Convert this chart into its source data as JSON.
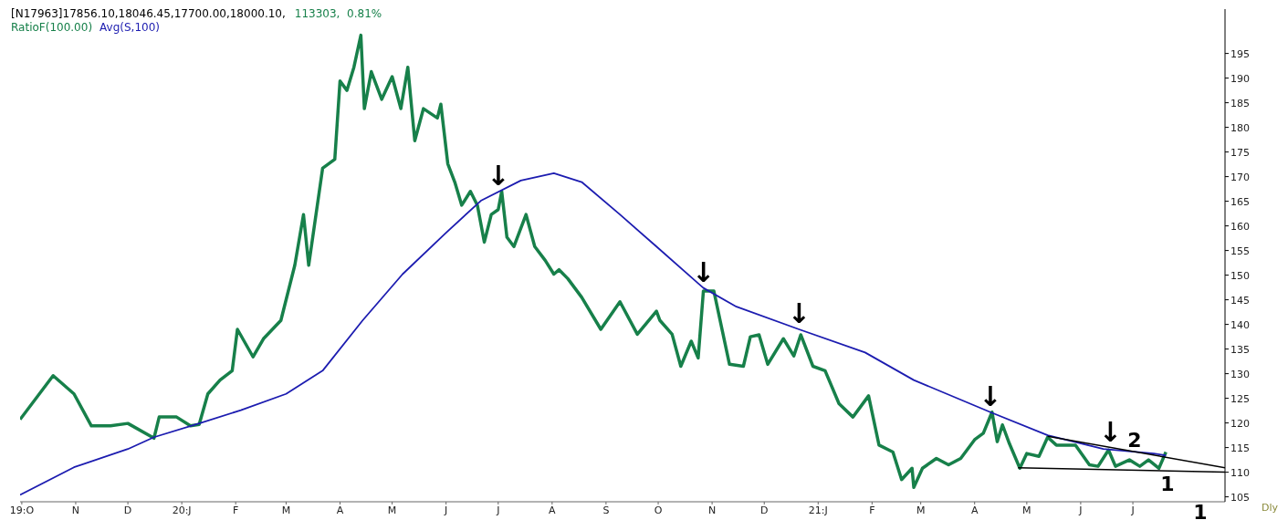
{
  "chart_data": {
    "type": "line",
    "title": "[N17963]17856.10,18046.45,17700.00,18000.10,",
    "subtitle": "113303,  0.81%",
    "xlim": [
      "2019-09-30",
      "2021-08-23"
    ],
    "ylim": [
      104,
      204
    ],
    "xticks": [
      {
        "value": "2019-10-01",
        "label": "19:O"
      },
      {
        "value": "2019-11-01",
        "label": "N"
      },
      {
        "value": "2019-12-01",
        "label": "D"
      },
      {
        "value": "2020-01-01",
        "label": "20:J"
      },
      {
        "value": "2020-02-01",
        "label": "F"
      },
      {
        "value": "2020-03-01",
        "label": "M"
      },
      {
        "value": "2020-04-01",
        "label": "A"
      },
      {
        "value": "2020-05-01",
        "label": "M"
      },
      {
        "value": "2020-06-01",
        "label": "J"
      },
      {
        "value": "2020-07-01",
        "label": "J"
      },
      {
        "value": "2020-08-01",
        "label": "A"
      },
      {
        "value": "2020-09-01",
        "label": "S"
      },
      {
        "value": "2020-10-01",
        "label": "O"
      },
      {
        "value": "2020-11-01",
        "label": "N"
      },
      {
        "value": "2020-12-01",
        "label": "D"
      },
      {
        "value": "2021-01-01",
        "label": "21:J"
      },
      {
        "value": "2021-02-01",
        "label": "F"
      },
      {
        "value": "2021-03-01",
        "label": "M"
      },
      {
        "value": "2021-04-01",
        "label": "A"
      },
      {
        "value": "2021-05-01",
        "label": "M"
      },
      {
        "value": "2021-06-01",
        "label": "J"
      },
      {
        "value": "2021-07-01",
        "label": "J"
      }
    ],
    "yticks": [
      105,
      110,
      115,
      120,
      125,
      130,
      135,
      140,
      145,
      150,
      155,
      160,
      165,
      170,
      175,
      180,
      185,
      190,
      195
    ],
    "legend": "top left",
    "marker": "none",
    "line_style": "solid",
    "series": [
      {
        "name": "RatioF(100.00)",
        "color": "#17804a",
        "x": [
          "2019-09-30",
          "2019-10-19",
          "2019-10-31",
          "2019-11-10",
          "2019-11-21",
          "2019-12-01",
          "2019-12-16",
          "2019-12-19",
          "2019-12-29",
          "2020-01-06",
          "2020-01-11",
          "2020-01-16",
          "2020-01-23",
          "2020-01-30",
          "2020-02-02",
          "2020-02-11",
          "2020-02-17",
          "2020-02-27",
          "2020-03-06",
          "2020-03-11",
          "2020-03-14",
          "2020-03-22",
          "2020-03-29",
          "2020-04-01",
          "2020-04-05",
          "2020-04-09",
          "2020-04-13",
          "2020-04-15",
          "2020-04-19",
          "2020-04-25",
          "2020-05-01",
          "2020-05-06",
          "2020-05-10",
          "2020-05-14",
          "2020-05-19",
          "2020-05-27",
          "2020-05-29",
          "2020-06-02",
          "2020-06-06",
          "2020-06-10",
          "2020-06-15",
          "2020-06-19",
          "2020-06-23",
          "2020-06-27",
          "2020-07-01",
          "2020-07-03",
          "2020-07-06",
          "2020-07-10",
          "2020-07-17",
          "2020-07-22",
          "2020-07-28",
          "2020-08-02",
          "2020-08-05",
          "2020-08-10",
          "2020-08-18",
          "2020-08-29",
          "2020-09-09",
          "2020-09-19",
          "2020-09-30",
          "2020-10-02",
          "2020-10-09",
          "2020-10-14",
          "2020-10-20",
          "2020-10-24",
          "2020-10-27",
          "2020-11-02",
          "2020-11-11",
          "2020-11-19",
          "2020-11-23",
          "2020-11-28",
          "2020-12-03",
          "2020-12-12",
          "2020-12-18",
          "2020-12-22",
          "2020-12-29",
          "2021-01-05",
          "2021-01-13",
          "2021-01-21",
          "2021-01-30",
          "2021-02-05",
          "2021-02-13",
          "2021-02-18",
          "2021-02-24",
          "2021-02-25",
          "2021-03-02",
          "2021-03-10",
          "2021-03-17",
          "2021-03-24",
          "2021-04-01",
          "2021-04-06",
          "2021-04-11",
          "2021-04-14",
          "2021-04-17",
          "2021-04-21",
          "2021-04-27",
          "2021-05-01",
          "2021-05-08",
          "2021-05-13",
          "2021-05-18",
          "2021-05-29",
          "2021-06-06",
          "2021-06-11",
          "2021-06-17",
          "2021-06-21",
          "2021-06-29",
          "2021-07-05",
          "2021-07-10",
          "2021-07-16",
          "2021-07-20"
        ],
        "values": [
          120.7,
          129.6,
          125.9,
          119.4,
          119.4,
          119.9,
          116.9,
          121.2,
          121.2,
          119.4,
          119.7,
          125.9,
          128.7,
          130.6,
          139.0,
          133.4,
          137.1,
          140.8,
          152.0,
          162.3,
          152.0,
          171.7,
          173.5,
          189.4,
          187.5,
          192.2,
          198.7,
          183.8,
          191.3,
          185.7,
          190.3,
          183.8,
          192.2,
          177.3,
          183.8,
          181.9,
          184.7,
          172.6,
          168.9,
          164.2,
          167.0,
          164.2,
          156.7,
          162.3,
          163.3,
          167.0,
          157.7,
          155.8,
          162.3,
          155.8,
          153.0,
          150.2,
          151.1,
          149.3,
          145.5,
          139.0,
          144.6,
          138.0,
          142.7,
          140.8,
          138.0,
          131.5,
          136.6,
          133.2,
          146.8,
          146.8,
          131.9,
          131.5,
          137.5,
          137.9,
          131.9,
          137.1,
          133.6,
          137.9,
          131.5,
          130.6,
          123.9,
          121.2,
          125.5,
          115.5,
          114.1,
          108.5,
          110.8,
          106.9,
          110.8,
          112.8,
          111.5,
          112.8,
          116.6,
          117.9,
          122.2,
          116.2,
          119.6,
          115.8,
          110.8,
          113.8,
          113.2,
          117.1,
          115.5,
          115.5,
          111.5,
          111.2,
          114.5,
          111.2,
          112.5,
          111.2,
          112.5,
          110.8,
          114.1
        ]
      },
      {
        "name": "Avg(S,100)",
        "color": "#1c1cb0",
        "x": [
          "2019-09-30",
          "2019-10-31",
          "2019-12-01",
          "2019-12-16",
          "2020-01-11",
          "2020-02-04",
          "2020-03-01",
          "2020-03-22",
          "2020-04-14",
          "2020-05-07",
          "2020-06-01",
          "2020-06-21",
          "2020-07-14",
          "2020-08-02",
          "2020-08-18",
          "2020-09-09",
          "2020-09-30",
          "2020-10-27",
          "2020-11-15",
          "2020-12-21",
          "2021-01-28",
          "2021-02-25",
          "2021-04-10",
          "2021-05-13",
          "2021-06-14",
          "2021-07-13",
          "2021-07-20"
        ],
        "values": [
          105.4,
          111.0,
          114.7,
          117.1,
          119.9,
          122.6,
          125.9,
          130.6,
          140.8,
          150.2,
          158.6,
          165.1,
          169.2,
          170.7,
          168.9,
          162.3,
          155.8,
          147.4,
          143.6,
          139.0,
          134.3,
          128.7,
          122.2,
          117.5,
          114.7,
          113.8,
          113.4
        ]
      },
      {
        "color": "#000000",
        "x": [
          "2021-05-13",
          "2021-08-23"
        ],
        "values": [
          117.3,
          110.9
        ]
      },
      {
        "color": "#000000",
        "x": [
          "2021-04-26",
          "2021-08-23"
        ],
        "values": [
          110.9,
          110.0
        ]
      }
    ],
    "annotations": [
      {
        "text": "↓",
        "x": "2020-07-01",
        "y": 166.9
      },
      {
        "text": "↓",
        "x": "2020-10-27",
        "y": 147.4
      },
      {
        "text": "↓",
        "x": "2020-12-21",
        "y": 139.0
      },
      {
        "text": "↓",
        "x": "2021-04-10",
        "y": 122.2
      },
      {
        "text": "↓",
        "x": "2021-06-18",
        "y": 115.0
      },
      "2",
      "1",
      "1",
      "Dly"
    ]
  }
}
